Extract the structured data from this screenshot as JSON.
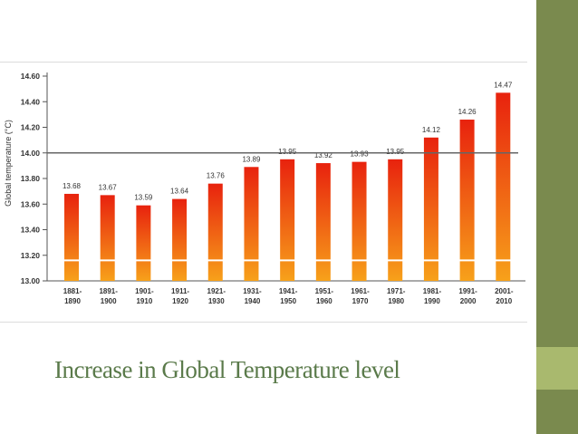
{
  "slide": {
    "title": "Increase in Global Temperature level",
    "colors": {
      "sidebar_top": "#7a8a4e",
      "sidebar_mid": "#a9b96e",
      "sidebar_bottom": "#7a8a4e",
      "title": "#5a7a4a",
      "bar_top": "#e8220e",
      "bar_bottom": "#f7a11a",
      "reference_line": "#666666"
    }
  },
  "chart_data": {
    "type": "bar",
    "ylabel": "Global temperature (°C)",
    "ylim": [
      13.0,
      14.6
    ],
    "yticks": [
      "13.00",
      "13.20",
      "13.40",
      "13.60",
      "13.80",
      "14.00",
      "14.20",
      "14.40",
      "14.60"
    ],
    "reference_line": 14.0,
    "grid": false,
    "categories": [
      [
        "1881-",
        "1890"
      ],
      [
        "1891-",
        "1900"
      ],
      [
        "1901-",
        "1910"
      ],
      [
        "1911-",
        "1920"
      ],
      [
        "1921-",
        "1930"
      ],
      [
        "1931-",
        "1940"
      ],
      [
        "1941-",
        "1950"
      ],
      [
        "1951-",
        "1960"
      ],
      [
        "1961-",
        "1970"
      ],
      [
        "1971-",
        "1980"
      ],
      [
        "1981-",
        "1990"
      ],
      [
        "1991-",
        "2000"
      ],
      [
        "2001-",
        "2010"
      ]
    ],
    "values": [
      13.68,
      13.67,
      13.59,
      13.64,
      13.76,
      13.89,
      13.95,
      13.92,
      13.93,
      13.95,
      14.12,
      14.26,
      14.47
    ],
    "data_labels": [
      "13.68",
      "13.67",
      "13.59",
      "13.64",
      "13.76",
      "13.89",
      "13.95",
      "13.92",
      "13.93",
      "13.95",
      "14.12",
      "14.26",
      "14.47"
    ]
  }
}
